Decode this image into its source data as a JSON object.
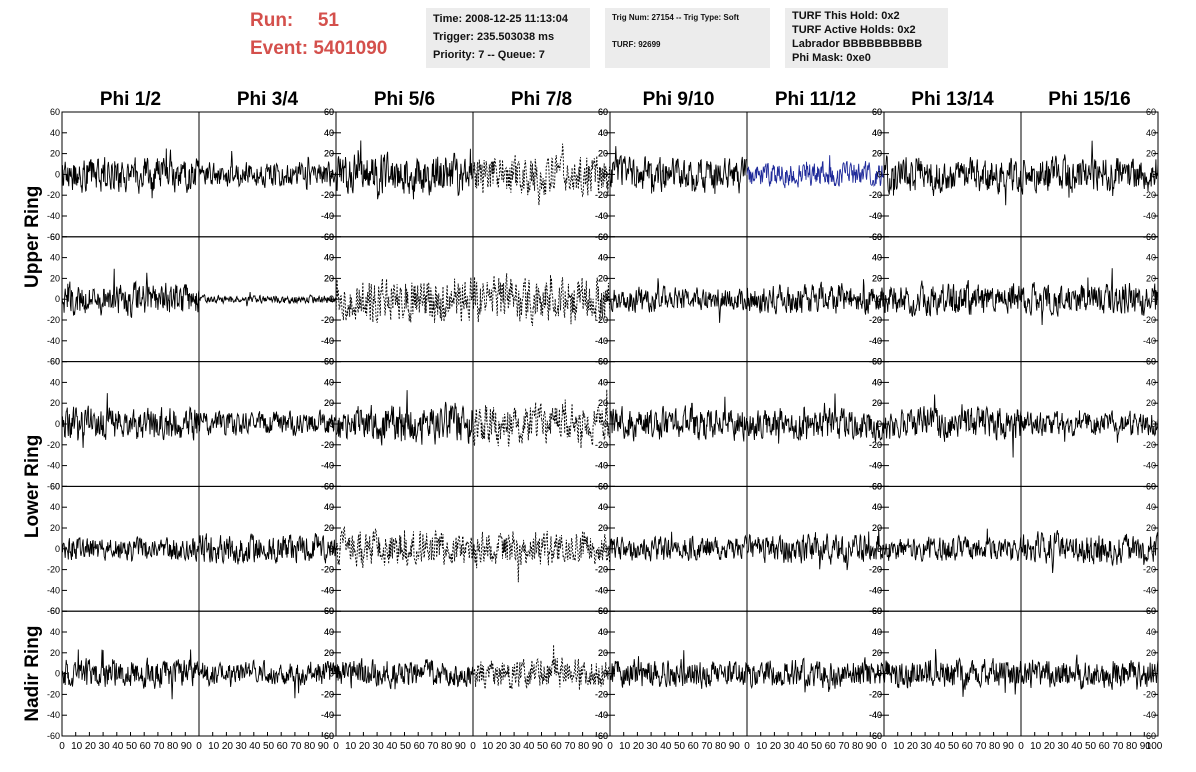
{
  "header": {
    "run_label": "Run:",
    "run_value": "51",
    "event_label": "Event:",
    "event_value": "5401090",
    "time_box": [
      "Time: 2008-12-25 11:13:04",
      "Trigger: 235.503038 ms",
      "Priority: 7 -- Queue: 7"
    ],
    "trig_box": [
      "Trig Num: 27154 -- Trig Type: Soft",
      "TURF: 92699"
    ],
    "turf_box": [
      "TURF This Hold: 0x2",
      "TURF Active Holds: 0x2",
      "Labrador BBBBBBBBBB",
      "Phi Mask: 0xe0"
    ]
  },
  "colors": {
    "run_text": "#d4504c",
    "info_box_bg": "#ececec",
    "trace_default": "#000000",
    "trace_highlight": "#1f2a9a"
  },
  "chart_data": {
    "type": "line",
    "columns": [
      "Phi 1/2",
      "Phi 3/4",
      "Phi 5/6",
      "Phi 7/8",
      "Phi 9/10",
      "Phi 11/12",
      "Phi 13/14",
      "Phi 15/16"
    ],
    "row_groups": [
      "Upper Ring",
      "Lower Ring",
      "Nadir Ring"
    ],
    "panel_rows": 5,
    "xlim": [
      0,
      100
    ],
    "ylim": [
      -60,
      60
    ],
    "x_ticks": [
      0,
      10,
      20,
      30,
      40,
      50,
      60,
      70,
      80,
      90
    ],
    "last_x_tick": 100,
    "y_ticks": [
      -60,
      -40,
      -20,
      0,
      20,
      40,
      60
    ],
    "y_tick_side_alternates": true,
    "panels": [
      [
        {
          "amp": 22,
          "style": "solid"
        },
        {
          "amp": 15,
          "style": "solid"
        },
        {
          "amp": 25,
          "style": "solid"
        },
        {
          "amp": 25,
          "style": "dashed"
        },
        {
          "amp": 22,
          "style": "solid"
        },
        {
          "amp": 15,
          "style": "solid",
          "highlight": true
        },
        {
          "amp": 22,
          "style": "solid"
        },
        {
          "amp": 22,
          "style": "solid"
        }
      ],
      [
        {
          "amp": 20,
          "style": "solid"
        },
        {
          "amp": 5,
          "style": "solid"
        },
        {
          "amp": 28,
          "style": "dashed"
        },
        {
          "amp": 28,
          "style": "dashed"
        },
        {
          "amp": 15,
          "style": "solid"
        },
        {
          "amp": 18,
          "style": "solid"
        },
        {
          "amp": 20,
          "style": "solid"
        },
        {
          "amp": 20,
          "style": "solid"
        }
      ],
      [
        {
          "amp": 20,
          "style": "solid"
        },
        {
          "amp": 15,
          "style": "solid"
        },
        {
          "amp": 25,
          "style": "solid"
        },
        {
          "amp": 25,
          "style": "dashed"
        },
        {
          "amp": 20,
          "style": "solid"
        },
        {
          "amp": 20,
          "style": "solid"
        },
        {
          "amp": 20,
          "style": "solid"
        },
        {
          "amp": 15,
          "style": "solid"
        }
      ],
      [
        {
          "amp": 15,
          "style": "solid"
        },
        {
          "amp": 18,
          "style": "solid"
        },
        {
          "amp": 22,
          "style": "dashed"
        },
        {
          "amp": 22,
          "style": "dashed"
        },
        {
          "amp": 15,
          "style": "solid"
        },
        {
          "amp": 18,
          "style": "solid"
        },
        {
          "amp": 15,
          "style": "solid"
        },
        {
          "amp": 20,
          "style": "solid"
        }
      ],
      [
        {
          "amp": 18,
          "style": "solid"
        },
        {
          "amp": 15,
          "style": "solid"
        },
        {
          "amp": 18,
          "style": "solid"
        },
        {
          "amp": 18,
          "style": "dashed"
        },
        {
          "amp": 18,
          "style": "solid"
        },
        {
          "amp": 18,
          "style": "solid"
        },
        {
          "amp": 18,
          "style": "solid"
        },
        {
          "amp": 18,
          "style": "solid"
        }
      ]
    ]
  }
}
